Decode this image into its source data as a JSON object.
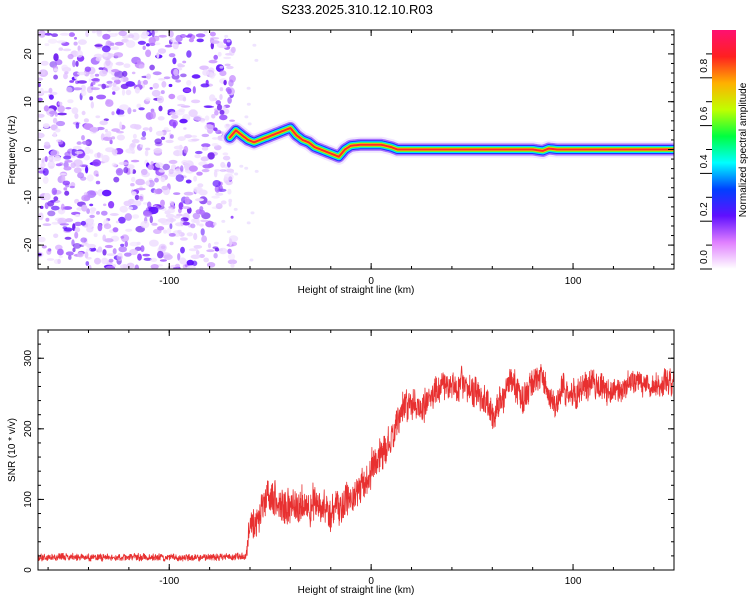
{
  "title": "S233.2025.310.12.10.R03",
  "chart_data": [
    {
      "type": "heatmap",
      "name": "spectrogram",
      "xlabel": "Height of straight line (km)",
      "ylabel": "Frequency (Hz)",
      "xlim": [
        -165,
        150
      ],
      "ylim": [
        -25,
        25
      ],
      "xticks": [
        -100,
        0,
        100
      ],
      "xtick_labels": [
        "-100",
        "0",
        "100"
      ],
      "yticks": [
        -20,
        -10,
        0,
        10,
        20
      ],
      "ytick_labels": [
        "-20",
        "-10",
        "0",
        "10",
        "20"
      ],
      "noise_region_x": [
        -165,
        -70
      ],
      "ridge": {
        "x": [
          -70,
          -67,
          -64,
          -61,
          -58,
          -55,
          -52,
          -49,
          -46,
          -43,
          -40,
          -37,
          -34,
          -31,
          -28,
          -25,
          -22,
          -19,
          -16,
          -13,
          -10,
          -5,
          0,
          5,
          10,
          13,
          20,
          40,
          60,
          70,
          80,
          85,
          88,
          92,
          100,
          120,
          150
        ],
        "y": [
          2.5,
          4,
          3,
          2,
          1.5,
          2,
          2.5,
          3,
          3.5,
          4,
          4.5,
          3,
          2,
          1.5,
          0.5,
          0,
          -0.5,
          -1,
          -1.5,
          0,
          0.8,
          1,
          1,
          1,
          0.5,
          0,
          0,
          0,
          0,
          0,
          0,
          -0.3,
          0.2,
          0,
          0,
          0,
          0
        ]
      },
      "colorbar": {
        "label": "Normalized spectral amplitude",
        "ticks": [
          0.0,
          0.2,
          0.4,
          0.6,
          0.8
        ],
        "tick_labels": [
          "0.0",
          "0.2",
          "0.4",
          "0.6",
          "0.8"
        ],
        "colors": [
          "#ffffff",
          "#e080ff",
          "#6010ff",
          "#0040ff",
          "#00ffff",
          "#00ff40",
          "#c0ff00",
          "#ffb000",
          "#ff2020",
          "#ff1070"
        ]
      }
    },
    {
      "type": "line",
      "name": "snr",
      "xlabel": "Height of straight line (km)",
      "ylabel": "SNR (10 * v/v)",
      "xlim": [
        -165,
        150
      ],
      "ylim": [
        0,
        340
      ],
      "xticks": [
        -100,
        0,
        100
      ],
      "xtick_labels": [
        "-100",
        "0",
        "100"
      ],
      "yticks": [
        0,
        100,
        200,
        300
      ],
      "ytick_labels": [
        "0",
        "100",
        "200",
        "300"
      ],
      "color": "#e83030",
      "trend": {
        "x": [
          -165,
          -140,
          -100,
          -80,
          -62,
          -60,
          -50,
          -40,
          -30,
          -20,
          -10,
          0,
          10,
          15,
          20,
          25,
          30,
          35,
          40,
          45,
          50,
          55,
          60,
          65,
          70,
          75,
          80,
          85,
          90,
          95,
          100,
          110,
          120,
          130,
          140,
          150
        ],
        "y": [
          18,
          18,
          18,
          18,
          20,
          60,
          100,
          85,
          95,
          80,
          100,
          140,
          180,
          225,
          240,
          230,
          250,
          260,
          255,
          265,
          250,
          245,
          220,
          250,
          270,
          240,
          265,
          270,
          235,
          255,
          250,
          265,
          245,
          270,
          260,
          265
        ]
      },
      "noise_amplitude": {
        "x": [
          -165,
          -62,
          -60,
          0,
          20,
          150
        ],
        "y": [
          8,
          8,
          45,
          40,
          38,
          30
        ]
      }
    }
  ]
}
